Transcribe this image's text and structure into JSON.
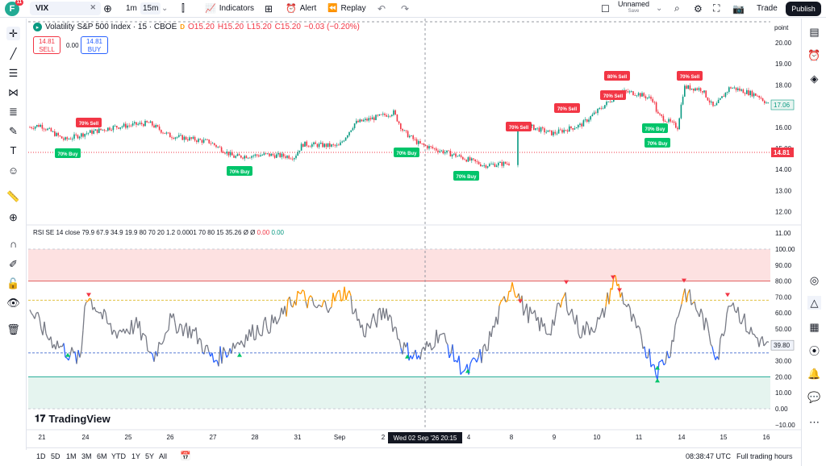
{
  "topbar": {
    "logo_letter": "F",
    "notif_count": "11",
    "symbol": "VIX",
    "timeframes": [
      "1m",
      "15m"
    ],
    "indicators_label": "Indicators",
    "alert_label": "Alert",
    "replay_label": "Replay",
    "layout_name": "Unnamed",
    "save_label": "Save",
    "trade_label": "Trade",
    "publish_label": "Publish"
  },
  "legend": {
    "title": "Volatility S&P 500 Index · 15 · CBOE",
    "flag": "D",
    "open": "O15.20",
    "high": "H15.20",
    "low": "L15.20",
    "close": "C15.20",
    "change": "−0.03 (−0.20%)",
    "sell_price": "14.81",
    "sell_label": "SELL",
    "spread": "0.00",
    "buy_price": "14.81",
    "buy_label": "BUY"
  },
  "rsi_legend": {
    "text": "RSI SE 14 close 79.9 67.9 34.9 19.9 80 70 20 1.2 0.0001 70 80 15",
    "value": "35.26",
    "na1": "Ø",
    "na2": "Ø",
    "v1": "0.00",
    "v2": "0.00"
  },
  "price_axis": {
    "unit": "point",
    "ticks": [
      "20.00",
      "19.00",
      "18.00",
      "17.00",
      "16.00",
      "15.00",
      "14.00",
      "13.00",
      "12.00",
      "11.00"
    ],
    "current_price": "17.06",
    "last_price": "14.81"
  },
  "rsi_axis": {
    "ticks": [
      "100.00",
      "90.00",
      "80.00",
      "70.00",
      "60.00",
      "50.00",
      "40.00",
      "30.00",
      "20.00",
      "10.00",
      "0.00",
      "−10.00"
    ],
    "current_value": "39.80"
  },
  "signals": {
    "sell": [
      "70% Sell",
      "70% Sell",
      "70% Sell",
      "80% Sell",
      "70% Sell",
      "70% Sell"
    ],
    "buy": [
      "70% Buy",
      "70% Buy",
      "70% Buy",
      "70% Buy",
      "70% Buy",
      "70% Buy"
    ]
  },
  "time_axis": {
    "labels": [
      "21",
      "24",
      "25",
      "26",
      "27",
      "28",
      "31",
      "Sep",
      "2",
      "3",
      "4",
      "8",
      "9",
      "10",
      "11",
      "14",
      "15",
      "16"
    ],
    "crosshair_label": "Wed 02 Sep '26   20:15"
  },
  "bottombar": {
    "ranges": [
      "1D",
      "5D",
      "1M",
      "3M",
      "6M",
      "YTD",
      "1Y",
      "5Y",
      "All"
    ],
    "clock": "08:38:47 UTC",
    "session": "Full trading hours"
  },
  "watermark": "TradingView",
  "colors": {
    "up": "#089981",
    "down": "#f23645",
    "rsi_line": "#787b86",
    "rsi_overbought": "#ff9800",
    "rsi_oversold": "#2962ff",
    "ob_zone": "#fde1e1",
    "os_zone": "#e5f4ef"
  }
}
